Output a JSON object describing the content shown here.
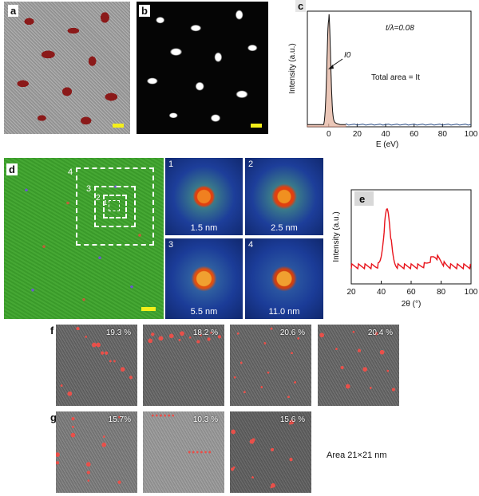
{
  "panels": {
    "a": "a",
    "b": "b",
    "c": "c",
    "d": "d",
    "e": "e",
    "f": "f",
    "g": "g"
  },
  "colors": {
    "red_overlay": "#8b1a1a",
    "scale_bar": "#f4ef1a",
    "green_map": "#3c9a2a",
    "xrd_line": "#e8141c",
    "eels_fill": "#d9a08a",
    "eels_tail": "#3a5a8a"
  },
  "panel_c": {
    "annotation_ratio": "t/λ=0.08",
    "annotation_i0": "I0",
    "annotation_area": "Total area = It",
    "chart_data": {
      "type": "line",
      "xlabel": "E (eV)",
      "ylabel": "Intensity (a.u.)",
      "xlim": [
        -15,
        100
      ],
      "xticks": [
        0,
        20,
        40,
        60,
        80,
        100
      ],
      "peak": {
        "x": 0,
        "y_rel": 1.0
      },
      "baseline_y_rel": 0.02
    }
  },
  "panel_d": {
    "box_labels": [
      "4",
      "3",
      "2",
      "1"
    ],
    "fft_tiles": [
      {
        "num": "1",
        "label": "1.5 nm"
      },
      {
        "num": "2",
        "label": "2.5 nm"
      },
      {
        "num": "3",
        "label": "5.5 nm"
      },
      {
        "num": "4",
        "label": "11.0 nm"
      }
    ]
  },
  "panel_e": {
    "chart_data": {
      "type": "line",
      "xlabel": "2θ (°)",
      "ylabel": "Intensity (a.u.)",
      "xlim": [
        20,
        100
      ],
      "xticks": [
        20,
        40,
        60,
        80,
        100
      ],
      "peaks": [
        {
          "x": 44,
          "y_rel": 0.95
        },
        {
          "x": 76,
          "y_rel": 0.12
        }
      ]
    }
  },
  "panel_f": {
    "percentages": [
      "19.3 %",
      "18.2 %",
      "20.6 %",
      "20.4 %"
    ]
  },
  "panel_g": {
    "percentages": [
      "15.7%",
      "10.3 %",
      "15.6 %"
    ],
    "area_note": "Area 21×21 nm"
  }
}
